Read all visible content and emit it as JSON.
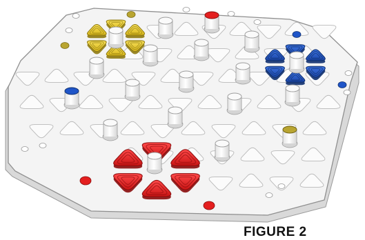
{
  "figure": {
    "caption": "FIGURE 2"
  },
  "colors": {
    "board": "#f3f3f3",
    "board_edge": "#c9c9c9",
    "cell": "#fbfbfb",
    "cell_outline": "#b9b9b9",
    "peg": "#fafafa",
    "red": "#e41f1f",
    "yellow": "#e9c923",
    "blue": "#1f55c8",
    "olive": "#b9a531"
  }
}
